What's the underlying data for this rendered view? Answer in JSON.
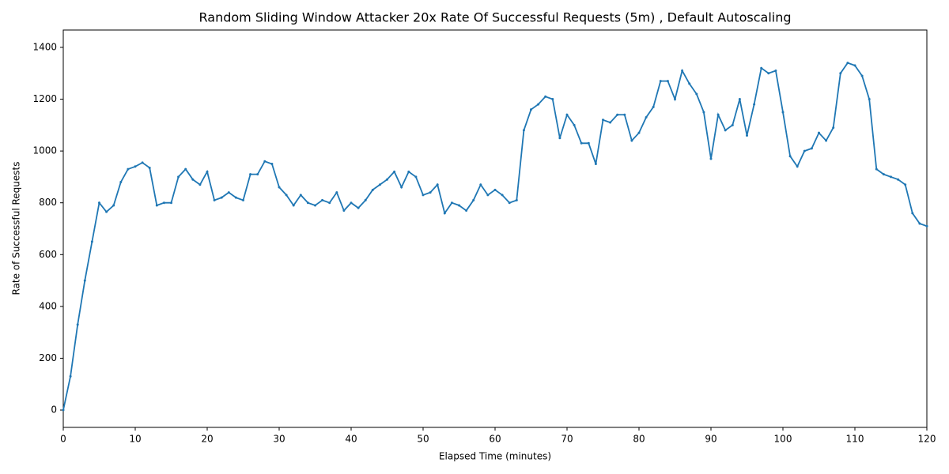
{
  "chart_data": {
    "type": "line",
    "title": "Random Sliding Window Attacker 20x Rate Of Successful Requests (5m) , Default Autoscaling",
    "x_label": "Elapsed Time (minutes)",
    "y_label": "Rate of Successful Requests",
    "x": [
      0,
      1,
      2,
      3,
      4,
      5,
      6,
      7,
      8,
      9,
      10,
      11,
      12,
      13,
      14,
      15,
      16,
      17,
      18,
      19,
      20,
      21,
      22,
      23,
      24,
      25,
      26,
      27,
      28,
      29,
      30,
      31,
      32,
      33,
      34,
      35,
      36,
      37,
      38,
      39,
      40,
      41,
      42,
      43,
      44,
      45,
      46,
      47,
      48,
      49,
      50,
      51,
      52,
      53,
      54,
      55,
      56,
      57,
      58,
      59,
      60,
      61,
      62,
      63,
      64,
      65,
      66,
      67,
      68,
      69,
      70,
      71,
      72,
      73,
      74,
      75,
      76,
      77,
      78,
      79,
      80,
      81,
      82,
      83,
      84,
      85,
      86,
      87,
      88,
      89,
      90,
      91,
      92,
      93,
      94,
      95,
      96,
      97,
      98,
      99,
      100,
      101,
      102,
      103,
      104,
      105,
      106,
      107,
      108,
      109,
      110,
      111,
      112,
      113,
      114,
      115,
      116,
      117,
      118,
      119,
      120
    ],
    "series": [
      {
        "name": "Rate of Successful Requests",
        "color": "#1f77b4",
        "values": [
          0,
          130,
          330,
          500,
          650,
          800,
          765,
          790,
          880,
          930,
          940,
          955,
          935,
          790,
          800,
          800,
          900,
          930,
          890,
          870,
          920,
          810,
          820,
          840,
          820,
          810,
          910,
          910,
          960,
          950,
          860,
          830,
          790,
          830,
          800,
          790,
          810,
          800,
          840,
          770,
          800,
          780,
          810,
          850,
          870,
          890,
          920,
          860,
          920,
          900,
          830,
          840,
          870,
          760,
          800,
          790,
          770,
          810,
          870,
          830,
          850,
          830,
          800,
          810,
          1080,
          1160,
          1180,
          1210,
          1200,
          1050,
          1140,
          1100,
          1030,
          1030,
          950,
          1120,
          1110,
          1140,
          1140,
          1040,
          1070,
          1130,
          1170,
          1270,
          1270,
          1200,
          1310,
          1260,
          1220,
          1150,
          970,
          1140,
          1080,
          1100,
          1200,
          1060,
          1180,
          1320,
          1300,
          1310,
          1150,
          980,
          940,
          1000,
          1010,
          1070,
          1040,
          1090,
          1300,
          1340,
          1330,
          1290,
          1200,
          930,
          910,
          900,
          890,
          870,
          760,
          720,
          710
        ]
      }
    ],
    "xlim": [
      0,
      120
    ],
    "xticks": [
      0,
      10,
      20,
      30,
      40,
      50,
      60,
      70,
      80,
      90,
      100,
      110,
      120
    ],
    "ylim": [
      -67,
      1467
    ],
    "yticks": [
      0,
      200,
      400,
      600,
      800,
      1000,
      1200,
      1400
    ]
  }
}
